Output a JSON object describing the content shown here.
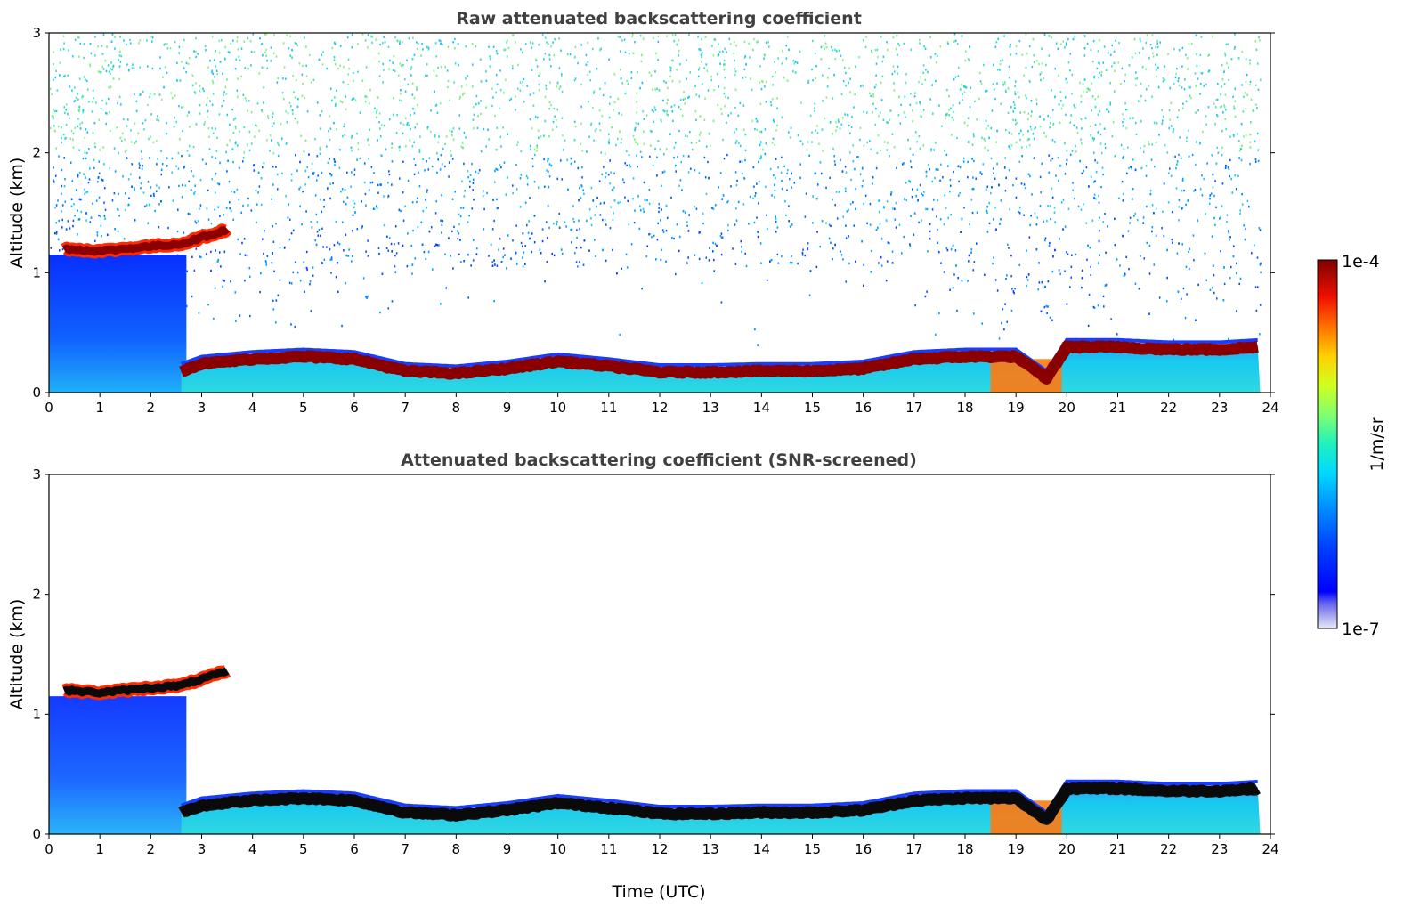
{
  "chart_data": [
    {
      "type": "heatmap",
      "title": "Raw attenuated backscattering coefficient",
      "ylabel": "Altitude (km)",
      "xlabel": "",
      "xlim": [
        0,
        24
      ],
      "ylim": [
        0,
        3
      ],
      "x_ticks": [
        "0",
        "1",
        "2",
        "3",
        "4",
        "5",
        "6",
        "7",
        "8",
        "9",
        "10",
        "11",
        "12",
        "13",
        "14",
        "15",
        "16",
        "17",
        "18",
        "19",
        "20",
        "21",
        "22",
        "23",
        "24"
      ],
      "y_ticks": [
        "0",
        "1",
        "2",
        "3"
      ],
      "data_end_hour": 23.8,
      "screened": false,
      "features": {
        "boundary_layer_top_km": [
          [
            2.6,
            0.18
          ],
          [
            3,
            0.24
          ],
          [
            4,
            0.28
          ],
          [
            5,
            0.3
          ],
          [
            6,
            0.28
          ],
          [
            7,
            0.18
          ],
          [
            8,
            0.16
          ],
          [
            9,
            0.2
          ],
          [
            10,
            0.26
          ],
          [
            11,
            0.22
          ],
          [
            12,
            0.17
          ],
          [
            13,
            0.17
          ],
          [
            14,
            0.18
          ],
          [
            15,
            0.18
          ],
          [
            16,
            0.2
          ],
          [
            17,
            0.28
          ],
          [
            18,
            0.3
          ],
          [
            19,
            0.3
          ],
          [
            19.6,
            0.12
          ],
          [
            20,
            0.38
          ],
          [
            21,
            0.38
          ],
          [
            22,
            0.36
          ],
          [
            23,
            0.36
          ],
          [
            23.8,
            0.38
          ]
        ],
        "elevated_layer_km": [
          [
            0.3,
            1.2
          ],
          [
            1,
            1.18
          ],
          [
            2,
            1.22
          ],
          [
            2.6,
            1.24
          ],
          [
            3.2,
            1.32
          ],
          [
            3.5,
            1.36
          ]
        ],
        "residual_layer_top_km": 1.15,
        "residual_layer_end_hour": 2.7,
        "strong_low_layer_hours": [
          18.5,
          19.9
        ]
      }
    },
    {
      "type": "heatmap",
      "title": "Attenuated backscattering coefficient (SNR-screened)",
      "ylabel": "Altitude (km)",
      "xlabel": "Time (UTC)",
      "xlim": [
        0,
        24
      ],
      "ylim": [
        0,
        3
      ],
      "x_ticks": [
        "0",
        "1",
        "2",
        "3",
        "4",
        "5",
        "6",
        "7",
        "8",
        "9",
        "10",
        "11",
        "12",
        "13",
        "14",
        "15",
        "16",
        "17",
        "18",
        "19",
        "20",
        "21",
        "22",
        "23",
        "24"
      ],
      "y_ticks": [
        "0",
        "1",
        "2",
        "3"
      ],
      "data_end_hour": 23.8,
      "screened": true
    }
  ],
  "colorbar": {
    "max_label": "1e-4",
    "min_label": "1e-7",
    "unit_label": "1/m/sr",
    "colormap": "jet",
    "scale": "log",
    "vmin": 1e-07,
    "vmax": 0.0001
  }
}
